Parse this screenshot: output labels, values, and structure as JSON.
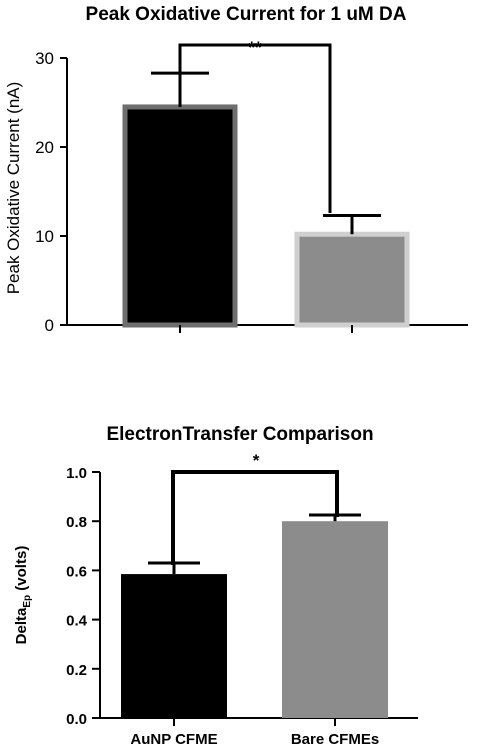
{
  "chart_data": [
    {
      "type": "bar",
      "title": "Peak Oxidative  Current for 1 uM DA",
      "ylabel": "Peak  Oxidative  Current (nA)",
      "xlabel": "",
      "ylim": [
        0,
        30
      ],
      "yticks": [
        0,
        10,
        20,
        30
      ],
      "categories": [
        "",
        ""
      ],
      "values": [
        24.5,
        10.2
      ],
      "errors": [
        3.8,
        2.1
      ],
      "colors": [
        "#000000",
        "#8c8c8c"
      ],
      "outline_colors": [
        "#6e6e6e",
        "#cfcfcf"
      ],
      "significance": "**",
      "grid": false,
      "legend": "none"
    },
    {
      "type": "bar",
      "title": "ElectronTransfer Comparison",
      "ylabel": "Delta",
      "ylabel_sub": "Ep",
      "ylabel_suffix": " (volts)",
      "xlabel": "",
      "ylim": [
        0,
        1.0
      ],
      "yticks": [
        "0.0",
        "0.2",
        "0.4",
        "0.6",
        "0.8",
        "1.0"
      ],
      "categories": [
        "AuNP CFME",
        "Bare CFMEs"
      ],
      "values": [
        0.585,
        0.8
      ],
      "errors": [
        0.045,
        0.025
      ],
      "colors": [
        "#000000",
        "#8c8c8c"
      ],
      "significance": "*",
      "grid": false,
      "legend": "none"
    }
  ]
}
